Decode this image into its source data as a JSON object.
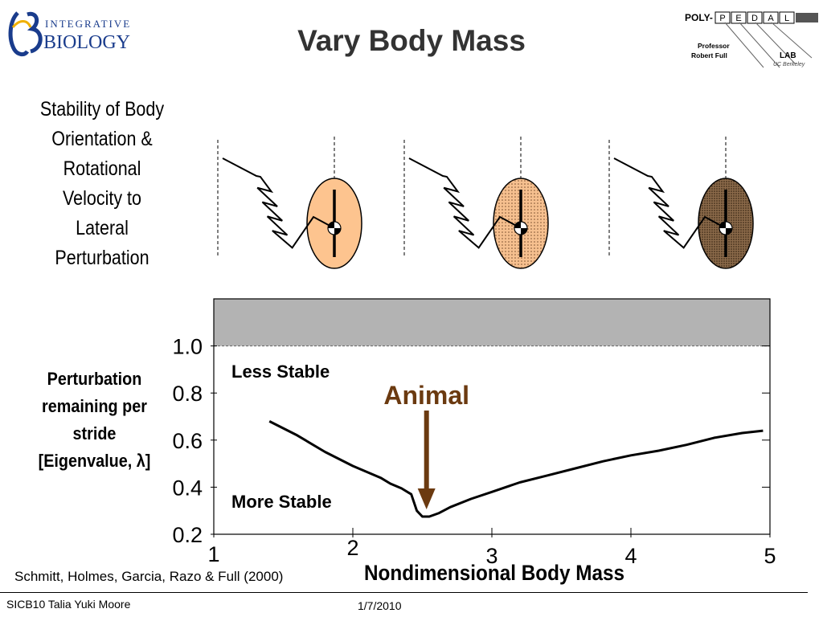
{
  "slide": {
    "title": "Vary Body Mass",
    "stability_caption": [
      "Stability of Body",
      "Orientation &",
      "Rotational",
      "Velocity to",
      "Lateral",
      "Perturbation"
    ],
    "citation": "Schmitt, Holmes, Garcia, Razo & Full (2000)",
    "footer_left": "SICB10 Talia Yuki Moore",
    "footer_date": "1/7/2010"
  },
  "logos": {
    "left": {
      "line1": "INTEGRATIVE",
      "line2": "BIOLOGY"
    },
    "right": {
      "prefix": "POLY-",
      "letters": [
        "P",
        "E",
        "D",
        "A",
        "L"
      ],
      "professor": "Professor",
      "name": "Robert Full",
      "lab": "LAB",
      "place": "UC Berkeley"
    }
  },
  "mass_figures": {
    "fill_colors": [
      "#fdc48f",
      "#f6c08f",
      "#8b6a4a"
    ]
  },
  "chart_data": {
    "type": "line",
    "title": "",
    "xlabel": "Nondimensional Body Mass",
    "ylabel": [
      "Perturbation",
      "remaining per",
      "stride",
      "[Eigenvalue, λ]"
    ],
    "xlim": [
      1,
      5
    ],
    "ylim": [
      0.2,
      1.2
    ],
    "xticks": [
      "1",
      "2",
      "3",
      "4",
      "5"
    ],
    "yticks": [
      "0.2",
      "0.4",
      "0.6",
      "0.8",
      "1.0"
    ],
    "unstable_region": [
      1.0,
      1.2
    ],
    "unstable_color": "#b3b3b3",
    "annotations": {
      "less_stable": "Less Stable",
      "more_stable": "More Stable",
      "animal": "Animal",
      "animal_x": 2.53,
      "animal_color": "#6b3a10"
    },
    "series": [
      {
        "x": [
          1.4,
          1.6,
          1.8,
          2.0,
          2.2,
          2.27,
          2.35,
          2.42,
          2.46,
          2.5,
          2.55,
          2.62,
          2.7,
          2.85,
          3.0,
          3.2,
          3.4,
          3.6,
          3.8,
          4.0,
          4.2,
          4.4,
          4.5,
          4.6,
          4.8,
          4.95
        ],
        "y": [
          0.68,
          0.62,
          0.55,
          0.49,
          0.44,
          0.415,
          0.395,
          0.37,
          0.3,
          0.275,
          0.275,
          0.29,
          0.315,
          0.35,
          0.38,
          0.42,
          0.45,
          0.48,
          0.51,
          0.535,
          0.555,
          0.58,
          0.595,
          0.61,
          0.63,
          0.64
        ]
      }
    ]
  }
}
